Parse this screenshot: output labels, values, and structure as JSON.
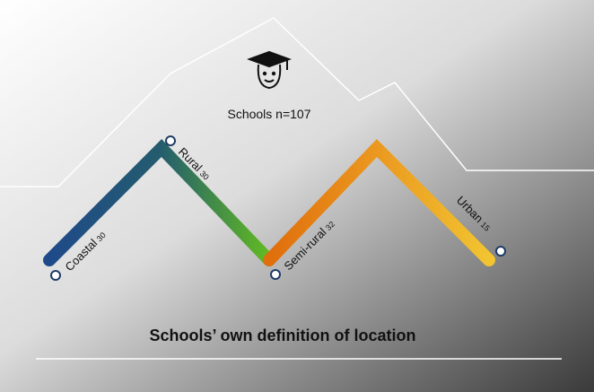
{
  "sample": "Schools n=107",
  "locations": [
    {
      "label": "Coastal",
      "count": 30
    },
    {
      "label": "Rural",
      "count": 30
    },
    {
      "label": "Semi-rural",
      "count": 32
    },
    {
      "label": "Urban",
      "count": 15
    }
  ],
  "title": "Schools’ own definition of location"
}
